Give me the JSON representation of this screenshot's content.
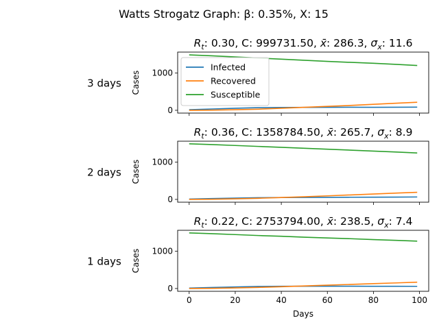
{
  "figure": {
    "suptitle": "Watts Strogatz Graph: β: 0.35%, X: 15"
  },
  "legend": {
    "placement": "upper-left of top panel",
    "entries": [
      {
        "label": "Infected",
        "color": "#1f77b4"
      },
      {
        "label": "Recovered",
        "color": "#ff7f0e"
      },
      {
        "label": "Susceptible",
        "color": "#2ca02c"
      }
    ]
  },
  "chart_data": [
    {
      "type": "line",
      "row_label": "3 days",
      "title": {
        "rt": "0.30",
        "c": "999731.50",
        "xbar": "286.3",
        "sigma": "11.6"
      },
      "xlabel": "",
      "ylabel": "Cases",
      "xlim": [
        -5,
        104
      ],
      "ylim": [
        -75,
        1560
      ],
      "yticks": [
        0,
        1000
      ],
      "xticks": [
        0,
        20,
        40,
        60,
        80,
        100
      ],
      "x": [
        0,
        10,
        20,
        30,
        40,
        50,
        60,
        70,
        80,
        90,
        99
      ],
      "series": [
        {
          "name": "Infected",
          "color": "#1f77b4",
          "values": [
            15,
            35,
            55,
            70,
            75,
            78,
            80,
            82,
            80,
            83,
            85
          ]
        },
        {
          "name": "Recovered",
          "color": "#ff7f0e",
          "values": [
            0,
            5,
            15,
            30,
            55,
            80,
            105,
            130,
            160,
            190,
            215
          ]
        },
        {
          "name": "Susceptible",
          "color": "#2ca02c",
          "values": [
            1485,
            1460,
            1430,
            1400,
            1370,
            1340,
            1310,
            1285,
            1260,
            1230,
            1200
          ]
        }
      ]
    },
    {
      "type": "line",
      "row_label": "2 days",
      "title": {
        "rt": "0.36",
        "c": "1358784.50",
        "xbar": "265.7",
        "sigma": "8.9"
      },
      "xlabel": "",
      "ylabel": "Cases",
      "xlim": [
        -5,
        104
      ],
      "ylim": [
        -75,
        1560
      ],
      "yticks": [
        0,
        1000
      ],
      "xticks": [
        0,
        20,
        40,
        60,
        80,
        100
      ],
      "x": [
        0,
        10,
        20,
        30,
        40,
        50,
        60,
        70,
        80,
        90,
        99
      ],
      "series": [
        {
          "name": "Infected",
          "color": "#1f77b4",
          "values": [
            10,
            22,
            35,
            45,
            50,
            52,
            55,
            58,
            60,
            62,
            65
          ]
        },
        {
          "name": "Recovered",
          "color": "#ff7f0e",
          "values": [
            0,
            5,
            15,
            30,
            50,
            70,
            95,
            120,
            145,
            170,
            190
          ]
        },
        {
          "name": "Susceptible",
          "color": "#2ca02c",
          "values": [
            1490,
            1470,
            1445,
            1420,
            1395,
            1370,
            1345,
            1320,
            1295,
            1270,
            1245
          ]
        }
      ]
    },
    {
      "type": "line",
      "row_label": "1 days",
      "title": {
        "rt": "0.22",
        "c": "2753794.00",
        "xbar": "238.5",
        "sigma": "7.4"
      },
      "xlabel": "Days",
      "ylabel": "Cases",
      "xlim": [
        -5,
        104
      ],
      "ylim": [
        -75,
        1560
      ],
      "yticks": [
        0,
        1000
      ],
      "xticks": [
        0,
        20,
        40,
        60,
        80,
        100
      ],
      "x": [
        0,
        10,
        20,
        30,
        40,
        50,
        60,
        70,
        80,
        90,
        99
      ],
      "series": [
        {
          "name": "Infected",
          "color": "#1f77b4",
          "values": [
            12,
            28,
            42,
            55,
            60,
            62,
            62,
            62,
            60,
            60,
            58
          ]
        },
        {
          "name": "Recovered",
          "color": "#ff7f0e",
          "values": [
            0,
            5,
            15,
            30,
            48,
            68,
            90,
            110,
            130,
            150,
            170
          ]
        },
        {
          "name": "Susceptible",
          "color": "#2ca02c",
          "values": [
            1490,
            1470,
            1445,
            1420,
            1400,
            1375,
            1355,
            1335,
            1310,
            1290,
            1270
          ]
        }
      ]
    }
  ]
}
